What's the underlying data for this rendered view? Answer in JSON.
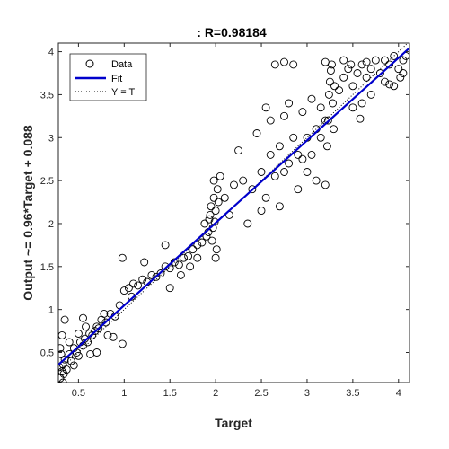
{
  "chart_data": {
    "type": "scatter",
    "title": ": R=0.98184",
    "xlabel": "Target",
    "ylabel": "Output ~= 0.96*Target + 0.088",
    "xlim": [
      0.28,
      4.12
    ],
    "ylim": [
      0.15,
      4.1
    ],
    "xticks": [
      0.5,
      1,
      1.5,
      2,
      2.5,
      3,
      3.5,
      4
    ],
    "xtick_labels": [
      "0.5",
      "1",
      "1.5",
      "2",
      "2.5",
      "3",
      "3.5",
      "4"
    ],
    "yticks": [
      0.5,
      1,
      1.5,
      2,
      2.5,
      3,
      3.5,
      4
    ],
    "ytick_labels": [
      "0.5",
      "1",
      "1.5",
      "2",
      "2.5",
      "3",
      "3.5",
      "4"
    ],
    "grid": false,
    "legend_position": "top-left",
    "colors": {
      "data": "#000000",
      "fit": "#0000cc",
      "identity": "#000000",
      "axes": "#262626"
    },
    "series": [
      {
        "name": "Data",
        "marker": "open-circle",
        "points": [
          [
            0.3,
            0.2
          ],
          [
            0.32,
            0.28
          ],
          [
            0.33,
            0.36
          ],
          [
            0.35,
            0.42
          ],
          [
            0.37,
            0.3
          ],
          [
            0.4,
            0.48
          ],
          [
            0.42,
            0.4
          ],
          [
            0.45,
            0.55
          ],
          [
            0.48,
            0.5
          ],
          [
            0.5,
            0.46
          ],
          [
            0.52,
            0.62
          ],
          [
            0.55,
            0.58
          ],
          [
            0.57,
            0.66
          ],
          [
            0.6,
            0.62
          ],
          [
            0.62,
            0.72
          ],
          [
            0.65,
            0.7
          ],
          [
            0.68,
            0.75
          ],
          [
            0.7,
            0.8
          ],
          [
            0.72,
            0.78
          ],
          [
            0.75,
            0.88
          ],
          [
            0.8,
            0.85
          ],
          [
            0.85,
            0.95
          ],
          [
            0.9,
            0.92
          ],
          [
            0.95,
            1.05
          ],
          [
            0.3,
            0.55
          ],
          [
            0.32,
            0.7
          ],
          [
            0.35,
            0.88
          ],
          [
            0.55,
            0.9
          ],
          [
            0.7,
            0.5
          ],
          [
            0.82,
            0.7
          ],
          [
            0.88,
            0.68
          ],
          [
            0.98,
            0.6
          ],
          [
            0.33,
            0.15
          ],
          [
            0.31,
            0.48
          ],
          [
            0.29,
            0.33
          ],
          [
            0.34,
            0.25
          ],
          [
            0.5,
            0.72
          ],
          [
            0.63,
            0.48
          ],
          [
            0.78,
            0.95
          ],
          [
            0.45,
            0.35
          ],
          [
            0.4,
            0.62
          ],
          [
            0.58,
            0.8
          ],
          [
            1.0,
            1.22
          ],
          [
            1.05,
            1.25
          ],
          [
            1.1,
            1.3
          ],
          [
            1.15,
            1.28
          ],
          [
            1.2,
            1.35
          ],
          [
            1.25,
            1.32
          ],
          [
            1.3,
            1.4
          ],
          [
            1.35,
            1.38
          ],
          [
            1.4,
            1.42
          ],
          [
            1.45,
            1.5
          ],
          [
            1.5,
            1.48
          ],
          [
            1.55,
            1.55
          ],
          [
            1.6,
            1.52
          ],
          [
            1.65,
            1.6
          ],
          [
            1.7,
            1.62
          ],
          [
            1.75,
            1.7
          ],
          [
            1.8,
            1.75
          ],
          [
            1.85,
            1.78
          ],
          [
            1.9,
            1.85
          ],
          [
            0.98,
            1.6
          ],
          [
            1.22,
            1.55
          ],
          [
            1.45,
            1.75
          ],
          [
            1.08,
            1.15
          ],
          [
            1.5,
            1.25
          ],
          [
            1.62,
            1.4
          ],
          [
            1.72,
            1.5
          ],
          [
            1.88,
            2.0
          ],
          [
            1.8,
            1.6
          ],
          [
            1.92,
            1.9
          ],
          [
            1.93,
            2.05
          ],
          [
            1.94,
            2.1
          ],
          [
            1.95,
            2.2
          ],
          [
            1.96,
            1.8
          ],
          [
            1.97,
            1.95
          ],
          [
            1.98,
            2.3
          ],
          [
            1.99,
            2.02
          ],
          [
            2.0,
            2.15
          ],
          [
            2.01,
            1.7
          ],
          [
            2.02,
            2.4
          ],
          [
            2.03,
            2.25
          ],
          [
            2.0,
            1.6
          ],
          [
            1.98,
            2.5
          ],
          [
            2.05,
            2.55
          ],
          [
            2.1,
            2.3
          ],
          [
            2.2,
            2.45
          ],
          [
            2.3,
            2.5
          ],
          [
            2.4,
            2.4
          ],
          [
            2.5,
            2.6
          ],
          [
            2.55,
            2.3
          ],
          [
            2.6,
            2.8
          ],
          [
            2.65,
            2.55
          ],
          [
            2.7,
            2.9
          ],
          [
            2.75,
            2.6
          ],
          [
            2.8,
            2.7
          ],
          [
            2.85,
            3.0
          ],
          [
            2.9,
            2.8
          ],
          [
            2.95,
            2.75
          ],
          [
            3.0,
            3.0
          ],
          [
            3.05,
            2.8
          ],
          [
            3.1,
            3.1
          ],
          [
            3.15,
            3.0
          ],
          [
            3.2,
            3.2
          ],
          [
            2.25,
            2.85
          ],
          [
            2.45,
            3.05
          ],
          [
            2.6,
            3.2
          ],
          [
            2.7,
            2.2
          ],
          [
            2.9,
            2.4
          ],
          [
            3.0,
            2.6
          ],
          [
            3.1,
            2.5
          ],
          [
            2.15,
            2.1
          ],
          [
            2.35,
            2.0
          ],
          [
            2.55,
            3.35
          ],
          [
            2.75,
            3.25
          ],
          [
            2.8,
            3.4
          ],
          [
            2.95,
            3.3
          ],
          [
            3.05,
            3.45
          ],
          [
            3.15,
            3.35
          ],
          [
            2.5,
            2.15
          ],
          [
            2.65,
            3.85
          ],
          [
            2.75,
            3.88
          ],
          [
            2.85,
            3.85
          ],
          [
            3.2,
            2.45
          ],
          [
            3.22,
            2.9
          ],
          [
            3.23,
            3.2
          ],
          [
            3.24,
            3.5
          ],
          [
            3.25,
            3.65
          ],
          [
            3.26,
            3.78
          ],
          [
            3.27,
            3.85
          ],
          [
            3.28,
            3.4
          ],
          [
            3.29,
            3.1
          ],
          [
            3.3,
            3.6
          ],
          [
            3.35,
            3.55
          ],
          [
            3.4,
            3.7
          ],
          [
            3.45,
            3.8
          ],
          [
            3.5,
            3.6
          ],
          [
            3.55,
            3.75
          ],
          [
            3.6,
            3.85
          ],
          [
            3.65,
            3.7
          ],
          [
            3.7,
            3.8
          ],
          [
            3.75,
            3.9
          ],
          [
            3.8,
            3.75
          ],
          [
            3.85,
            3.9
          ],
          [
            3.9,
            3.85
          ],
          [
            3.95,
            3.95
          ],
          [
            4.0,
            3.8
          ],
          [
            4.05,
            3.9
          ],
          [
            4.08,
            3.95
          ],
          [
            4.02,
            3.7
          ],
          [
            3.4,
            3.9
          ],
          [
            3.5,
            3.35
          ],
          [
            3.6,
            3.4
          ],
          [
            3.7,
            3.5
          ],
          [
            3.85,
            3.65
          ],
          [
            3.95,
            3.6
          ],
          [
            4.05,
            3.75
          ],
          [
            3.48,
            3.85
          ],
          [
            3.2,
            3.88
          ],
          [
            3.9,
            3.62
          ],
          [
            3.58,
            3.22
          ],
          [
            3.65,
            3.88
          ]
        ]
      },
      {
        "name": "Fit",
        "style": "solid line",
        "slope": 0.96,
        "intercept": 0.088
      },
      {
        "name": "Y = T",
        "style": "dotted line",
        "slope": 1.0,
        "intercept": 0.0
      }
    ]
  }
}
